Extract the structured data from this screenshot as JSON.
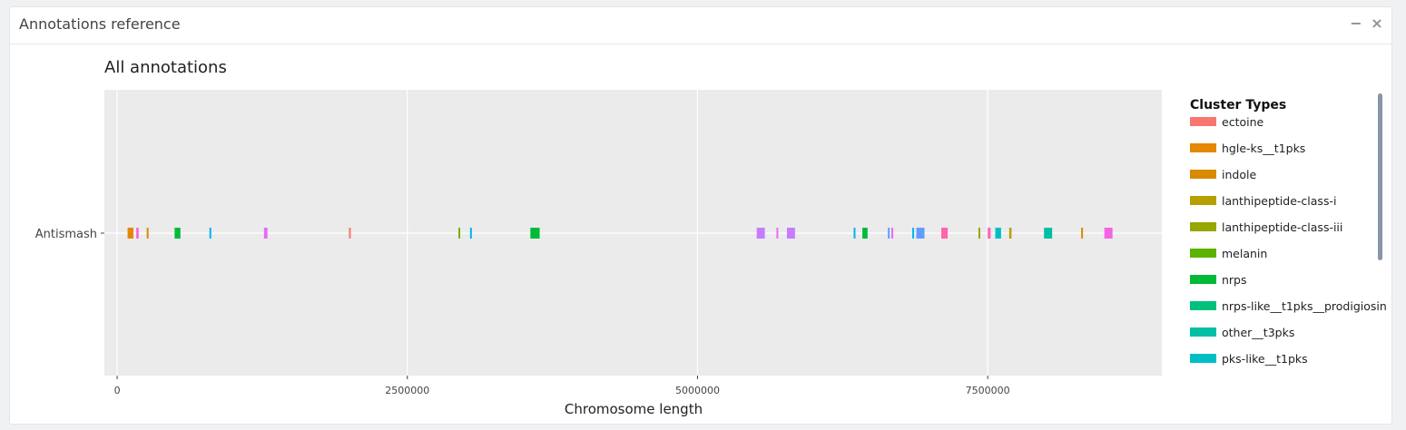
{
  "window": {
    "title": "Annotations reference",
    "minimize_label": "−",
    "close_label": "×"
  },
  "chart_data": {
    "type": "bar",
    "title": "All annotations",
    "xlabel": "Chromosome length",
    "ylabel": "",
    "xlim": [
      -110000,
      9000000
    ],
    "xticks": [
      0,
      2500000,
      5000000,
      7500000
    ],
    "xtick_labels": [
      "0",
      "2500000",
      "5000000",
      "7500000"
    ],
    "categories": [
      "Antismash"
    ],
    "grid": true,
    "legend": {
      "title": "Cluster Types",
      "position": "right",
      "items": [
        {
          "name": "ectoine",
          "color": "#F8766D"
        },
        {
          "name": "hgle-ks__t1pks",
          "color": "#E58700"
        },
        {
          "name": "indole",
          "color": "#D98A00"
        },
        {
          "name": "lanthipeptide-class-i",
          "color": "#B79F00"
        },
        {
          "name": "lanthipeptide-class-iii",
          "color": "#98A600"
        },
        {
          "name": "melanin",
          "color": "#5BB300"
        },
        {
          "name": "nrps",
          "color": "#00BA38"
        },
        {
          "name": "nrps-like__t1pks__prodigiosin",
          "color": "#00C07C"
        },
        {
          "name": "other__t3pks",
          "color": "#00BFA4"
        },
        {
          "name": "pks-like__t1pks",
          "color": "#00BFC4"
        }
      ]
    },
    "series": [
      {
        "name": "Antismash",
        "regions": [
          {
            "start": 90000,
            "end": 140000,
            "color": "#E58700"
          },
          {
            "start": 165000,
            "end": 185000,
            "color": "#FB61D7"
          },
          {
            "start": 255000,
            "end": 270000,
            "color": "#D98A00"
          },
          {
            "start": 495000,
            "end": 545000,
            "color": "#00BA38"
          },
          {
            "start": 795000,
            "end": 805000,
            "color": "#00B4EF"
          },
          {
            "start": 1265000,
            "end": 1295000,
            "color": "#E76BF3"
          },
          {
            "start": 1997000,
            "end": 2007000,
            "color": "#F8766D"
          },
          {
            "start": 2940000,
            "end": 2950000,
            "color": "#7CAE00"
          },
          {
            "start": 3040000,
            "end": 3050000,
            "color": "#00B4EF"
          },
          {
            "start": 3560000,
            "end": 3640000,
            "color": "#00BA38"
          },
          {
            "start": 5510000,
            "end": 5580000,
            "color": "#C77CFF"
          },
          {
            "start": 5680000,
            "end": 5695000,
            "color": "#E76BF3"
          },
          {
            "start": 5770000,
            "end": 5840000,
            "color": "#C77CFF"
          },
          {
            "start": 6345000,
            "end": 6355000,
            "color": "#00B4EF"
          },
          {
            "start": 6420000,
            "end": 6465000,
            "color": "#00BA38"
          },
          {
            "start": 6640000,
            "end": 6650000,
            "color": "#619CFF"
          },
          {
            "start": 6670000,
            "end": 6685000,
            "color": "#E76BF3"
          },
          {
            "start": 6850000,
            "end": 6860000,
            "color": "#00B4EF"
          },
          {
            "start": 6885000,
            "end": 6955000,
            "color": "#619CFF"
          },
          {
            "start": 7100000,
            "end": 7155000,
            "color": "#FF64B0"
          },
          {
            "start": 7420000,
            "end": 7435000,
            "color": "#98A600"
          },
          {
            "start": 7500000,
            "end": 7525000,
            "color": "#FF64B0"
          },
          {
            "start": 7565000,
            "end": 7615000,
            "color": "#00BFC4"
          },
          {
            "start": 7685000,
            "end": 7705000,
            "color": "#B79F00"
          },
          {
            "start": 7985000,
            "end": 8055000,
            "color": "#00BFA4"
          },
          {
            "start": 8305000,
            "end": 8320000,
            "color": "#D98A00"
          },
          {
            "start": 8505000,
            "end": 8575000,
            "color": "#F564E3"
          }
        ]
      }
    ]
  }
}
